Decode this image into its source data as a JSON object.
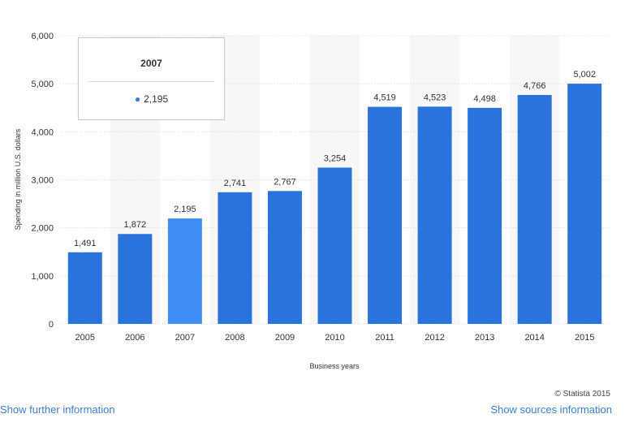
{
  "chart_data": {
    "type": "bar",
    "categories": [
      "2005",
      "2006",
      "2007",
      "2008",
      "2009",
      "2010",
      "2011",
      "2012",
      "2013",
      "2014",
      "2015"
    ],
    "values": [
      1491,
      1872,
      2195,
      2741,
      2767,
      3254,
      4519,
      4523,
      4498,
      4766,
      5002
    ],
    "value_labels": [
      "1,491",
      "1,872",
      "2,195",
      "2,741",
      "2,767",
      "3,254",
      "4,519",
      "4,523",
      "4,498",
      "4,766",
      "5,002"
    ],
    "xlabel": "Business years",
    "ylabel": "Spending in million U.S. dollars",
    "ylim": [
      0,
      6000
    ],
    "yticks": [
      0,
      1000,
      2000,
      3000,
      4000,
      5000,
      6000
    ],
    "ytick_labels": [
      "0",
      "1,000",
      "2,000",
      "3,000",
      "4,000",
      "5,000",
      "6,000"
    ],
    "highlighted_index": 2,
    "grid": true,
    "colors": {
      "bar": "#2a73dd",
      "bar_highlight": "#3f8ef5",
      "column_band": "#f7f7f7"
    }
  },
  "tooltip": {
    "title": "2007",
    "value": "2,195"
  },
  "footer": {
    "credit": "© Statista 2015",
    "further_info": "Show further information",
    "sources_info": "Show sources information"
  }
}
